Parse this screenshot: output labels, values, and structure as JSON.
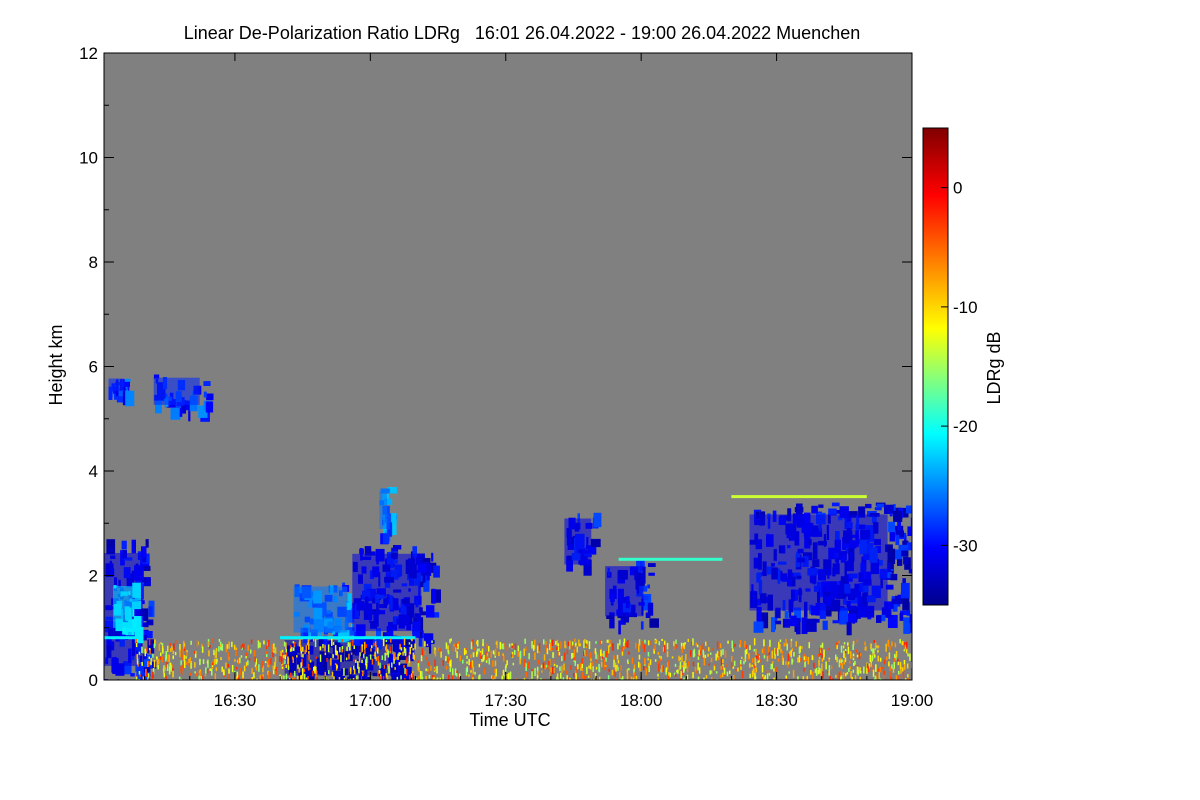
{
  "chart_data": {
    "type": "heatmap",
    "title": "Linear De-Polarization Ratio LDRg   16:01 26.04.2022 - 19:00 26.04.2022 Muenchen",
    "xlabel": "Time UTC",
    "ylabel": "Height km",
    "x_range": [
      "16:01",
      "19:00"
    ],
    "x_ticks": [
      "16:30",
      "17:00",
      "17:30",
      "18:00",
      "18:30",
      "19:00"
    ],
    "ylim": [
      0,
      12
    ],
    "y_ticks": [
      0,
      2,
      4,
      6,
      8,
      10,
      12
    ],
    "colorbar": {
      "label": "LDRg dB",
      "range": [
        -35,
        5
      ],
      "ticks": [
        0,
        -10,
        -20,
        -30
      ],
      "colormap": [
        "#00008b",
        "#0000ff",
        "#00bfff",
        "#00ffff",
        "#80ff80",
        "#ffff00",
        "#ff8000",
        "#ff0000",
        "#800000"
      ]
    },
    "background_color": "#808080",
    "features": [
      {
        "kind": "blob",
        "t_start": "16:02",
        "t_end": "16:06",
        "h_start": 5.5,
        "h_end": 5.8,
        "ldr": -29
      },
      {
        "kind": "blob",
        "t_start": "16:12",
        "t_end": "16:24",
        "h_start": 5.2,
        "h_end": 5.85,
        "ldr": -29
      },
      {
        "kind": "blob",
        "t_start": "16:01",
        "t_end": "16:11",
        "h_start": 0.0,
        "h_end": 2.7,
        "ldr": -31
      },
      {
        "kind": "blob",
        "t_start": "16:03",
        "t_end": "16:08",
        "h_start": 0.9,
        "h_end": 1.9,
        "ldr": -23
      },
      {
        "kind": "blob",
        "t_start": "16:41",
        "t_end": "17:09",
        "h_start": 0.0,
        "h_end": 0.85,
        "ldr": -33
      },
      {
        "kind": "blob",
        "t_start": "16:43",
        "t_end": "16:57",
        "h_start": 0.8,
        "h_end": 1.9,
        "ldr": -27
      },
      {
        "kind": "blob",
        "t_start": "16:56",
        "t_end": "17:14",
        "h_start": 0.75,
        "h_end": 2.6,
        "ldr": -31
      },
      {
        "kind": "blob",
        "t_start": "17:02",
        "t_end": "17:04",
        "h_start": 2.8,
        "h_end": 3.7,
        "ldr": -27
      },
      {
        "kind": "blob",
        "t_start": "17:43",
        "t_end": "17:50",
        "h_start": 2.1,
        "h_end": 3.2,
        "ldr": -31
      },
      {
        "kind": "blob",
        "t_start": "17:52",
        "t_end": "18:02",
        "h_start": 1.1,
        "h_end": 2.3,
        "ldr": -31
      },
      {
        "kind": "blob",
        "t_start": "18:24",
        "t_end": "19:00",
        "h_start": 1.1,
        "h_end": 3.4,
        "ldr": -31
      },
      {
        "kind": "line",
        "t_start": "16:40",
        "t_end": "17:10",
        "h": 0.8,
        "ldr": -21
      },
      {
        "kind": "line",
        "t_start": "16:01",
        "t_end": "16:08",
        "h": 0.8,
        "ldr": -21
      },
      {
        "kind": "line",
        "t_start": "17:55",
        "t_end": "18:18",
        "h": 2.3,
        "ldr": -18
      },
      {
        "kind": "line",
        "t_start": "18:20",
        "t_end": "18:50",
        "h": 3.5,
        "ldr": -12
      },
      {
        "kind": "noise_layer",
        "t_start": "16:08",
        "t_end": "19:00",
        "h_start": 0.0,
        "h_end": 0.8,
        "ldr": -8
      }
    ]
  }
}
